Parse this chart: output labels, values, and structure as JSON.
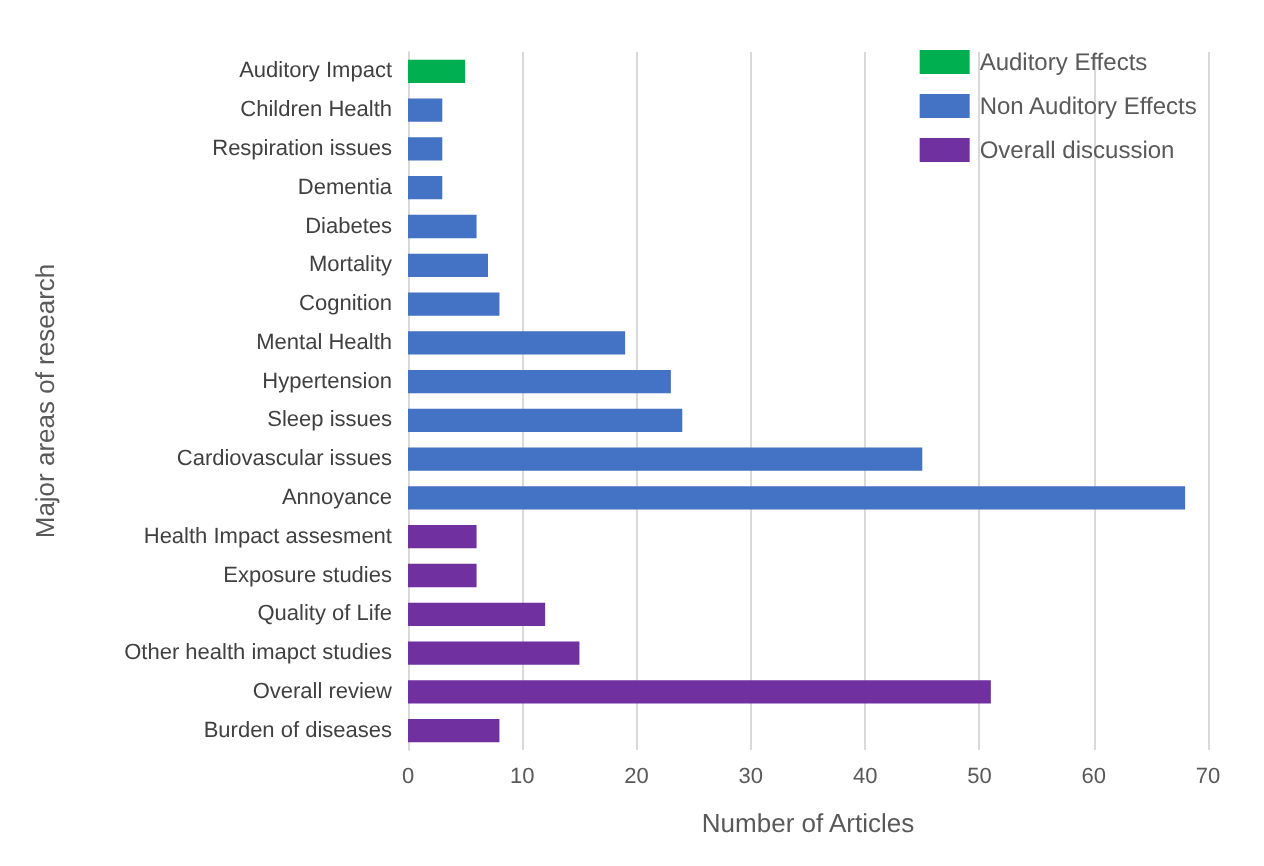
{
  "chart_data": {
    "type": "bar",
    "orientation": "horizontal",
    "stacked": true,
    "xlabel": "Number of Articles",
    "ylabel": "Major areas of research",
    "categories": [
      "Auditory Impact",
      "Children Health",
      "Respiration issues",
      "Dementia",
      "Diabetes",
      "Mortality",
      "Cognition",
      "Mental Health",
      "Hypertension",
      "Sleep issues",
      "Cardiovascular issues",
      "Annoyance",
      "Health Impact assesment",
      "Exposure studies",
      "Quality of Life",
      "Other health imapct studies",
      "Overall review",
      "Burden of diseases"
    ],
    "series": [
      {
        "name": "Auditory Effects",
        "color": "#00b050",
        "values": [
          5,
          null,
          null,
          null,
          null,
          null,
          null,
          null,
          null,
          null,
          null,
          null,
          null,
          null,
          null,
          null,
          null,
          null
        ]
      },
      {
        "name": "Non Auditory Effects",
        "color": "#4472c4",
        "values": [
          null,
          3,
          3,
          3,
          6,
          7,
          8,
          19,
          23,
          24,
          45,
          68,
          null,
          null,
          null,
          null,
          null,
          null
        ]
      },
      {
        "name": "Overall discussion",
        "color": "#7030a0",
        "values": [
          null,
          null,
          null,
          null,
          null,
          null,
          null,
          null,
          null,
          null,
          null,
          null,
          6,
          6,
          12,
          15,
          51,
          8
        ]
      }
    ],
    "xlim": [
      0,
      70
    ],
    "xticks": [
      0,
      10,
      20,
      30,
      40,
      50,
      60,
      70
    ],
    "grid": "x",
    "legend": "top right"
  }
}
